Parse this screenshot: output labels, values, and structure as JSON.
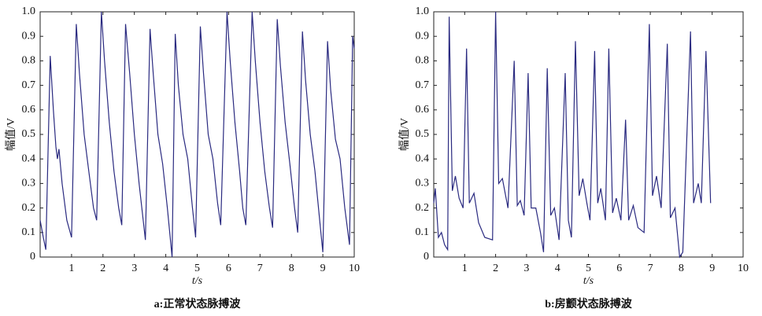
{
  "chart_data": [
    {
      "type": "line",
      "xlabel": "t/s",
      "ylabel": "幅值/V",
      "caption": "a:正常状态脉搏波",
      "color": "#2a2a80",
      "xlim": [
        0,
        10
      ],
      "ylim": [
        0,
        1
      ],
      "xticks": [
        1,
        2,
        3,
        4,
        5,
        6,
        7,
        8,
        9,
        10
      ],
      "yticks": [
        0,
        0.1,
        0.2,
        0.3,
        0.4,
        0.5,
        0.6,
        0.7,
        0.8,
        0.9,
        {
          "value": 1,
          "label": "1.0"
        }
      ],
      "x": [
        0,
        0.1,
        0.18,
        0.32,
        0.42,
        0.5,
        0.55,
        0.6,
        0.7,
        0.85,
        1.0,
        1.15,
        1.25,
        1.4,
        1.55,
        1.7,
        1.8,
        1.95,
        2.05,
        2.2,
        2.35,
        2.5,
        2.6,
        2.72,
        2.85,
        3.0,
        3.15,
        3.35,
        3.5,
        3.6,
        3.75,
        3.9,
        4.05,
        4.2,
        4.3,
        4.4,
        4.55,
        4.7,
        4.85,
        4.95,
        5.1,
        5.2,
        5.35,
        5.5,
        5.65,
        5.75,
        5.95,
        6.05,
        6.2,
        6.35,
        6.45,
        6.55,
        6.75,
        6.85,
        7.0,
        7.15,
        7.3,
        7.4,
        7.55,
        7.65,
        7.8,
        7.95,
        8.1,
        8.2,
        8.35,
        8.45,
        8.6,
        8.75,
        8.9,
        9.0,
        9.15,
        9.25,
        9.4,
        9.55,
        9.7,
        9.85,
        9.95,
        10
      ],
      "values": [
        0.15,
        0.08,
        0.03,
        0.82,
        0.6,
        0.45,
        0.4,
        0.44,
        0.3,
        0.15,
        0.08,
        0.95,
        0.75,
        0.5,
        0.35,
        0.2,
        0.15,
        1.0,
        0.8,
        0.55,
        0.35,
        0.2,
        0.13,
        0.95,
        0.75,
        0.5,
        0.3,
        0.07,
        0.93,
        0.75,
        0.5,
        0.38,
        0.2,
        0.0,
        0.91,
        0.7,
        0.5,
        0.4,
        0.2,
        0.08,
        0.94,
        0.75,
        0.5,
        0.4,
        0.22,
        0.13,
        1.0,
        0.8,
        0.55,
        0.35,
        0.2,
        0.13,
        1.0,
        0.8,
        0.55,
        0.35,
        0.2,
        0.12,
        0.97,
        0.78,
        0.55,
        0.38,
        0.2,
        0.1,
        0.92,
        0.72,
        0.5,
        0.35,
        0.15,
        0.02,
        0.88,
        0.68,
        0.48,
        0.4,
        0.2,
        0.05,
        0.9,
        0.85
      ]
    },
    {
      "type": "line",
      "xlabel": "t/s",
      "ylabel": "幅值/V",
      "caption": "b:房颤状态脉搏波",
      "color": "#2a2a80",
      "xlim": [
        0,
        10
      ],
      "ylim": [
        0,
        1
      ],
      "xticks": [
        1,
        2,
        3,
        4,
        5,
        6,
        7,
        8,
        9,
        10
      ],
      "yticks": [
        0,
        0.1,
        0.2,
        0.3,
        0.4,
        0.5,
        0.6,
        0.7,
        0.8,
        0.9,
        {
          "value": 1,
          "label": "1.0"
        }
      ],
      "x": [
        0,
        0.05,
        0.15,
        0.25,
        0.35,
        0.45,
        0.5,
        0.6,
        0.7,
        0.82,
        0.95,
        1.06,
        1.15,
        1.3,
        1.45,
        1.65,
        1.9,
        2.0,
        2.1,
        2.22,
        2.4,
        2.6,
        2.7,
        2.8,
        2.92,
        3.05,
        3.15,
        3.3,
        3.45,
        3.55,
        3.67,
        3.78,
        3.9,
        4.05,
        4.25,
        4.35,
        4.45,
        4.58,
        4.7,
        4.82,
        4.95,
        5.05,
        5.2,
        5.3,
        5.4,
        5.55,
        5.66,
        5.78,
        5.9,
        6.05,
        6.2,
        6.3,
        6.45,
        6.6,
        6.8,
        6.97,
        7.07,
        7.2,
        7.35,
        7.55,
        7.65,
        7.8,
        7.95,
        8.05,
        8.3,
        8.4,
        8.55,
        8.65,
        8.8,
        8.95
      ],
      "values": [
        0.22,
        0.28,
        0.08,
        0.1,
        0.05,
        0.03,
        0.98,
        0.27,
        0.33,
        0.24,
        0.2,
        0.85,
        0.22,
        0.26,
        0.14,
        0.08,
        0.07,
        1.0,
        0.3,
        0.32,
        0.2,
        0.8,
        0.21,
        0.23,
        0.17,
        0.75,
        0.2,
        0.2,
        0.1,
        0.02,
        0.77,
        0.17,
        0.2,
        0.07,
        0.75,
        0.15,
        0.08,
        0.88,
        0.25,
        0.32,
        0.22,
        0.15,
        0.84,
        0.22,
        0.28,
        0.15,
        0.85,
        0.18,
        0.24,
        0.15,
        0.56,
        0.15,
        0.21,
        0.12,
        0.1,
        0.95,
        0.25,
        0.33,
        0.2,
        0.87,
        0.16,
        0.2,
        0.0,
        0.02,
        0.92,
        0.22,
        0.3,
        0.22,
        0.84,
        0.22
      ]
    }
  ]
}
